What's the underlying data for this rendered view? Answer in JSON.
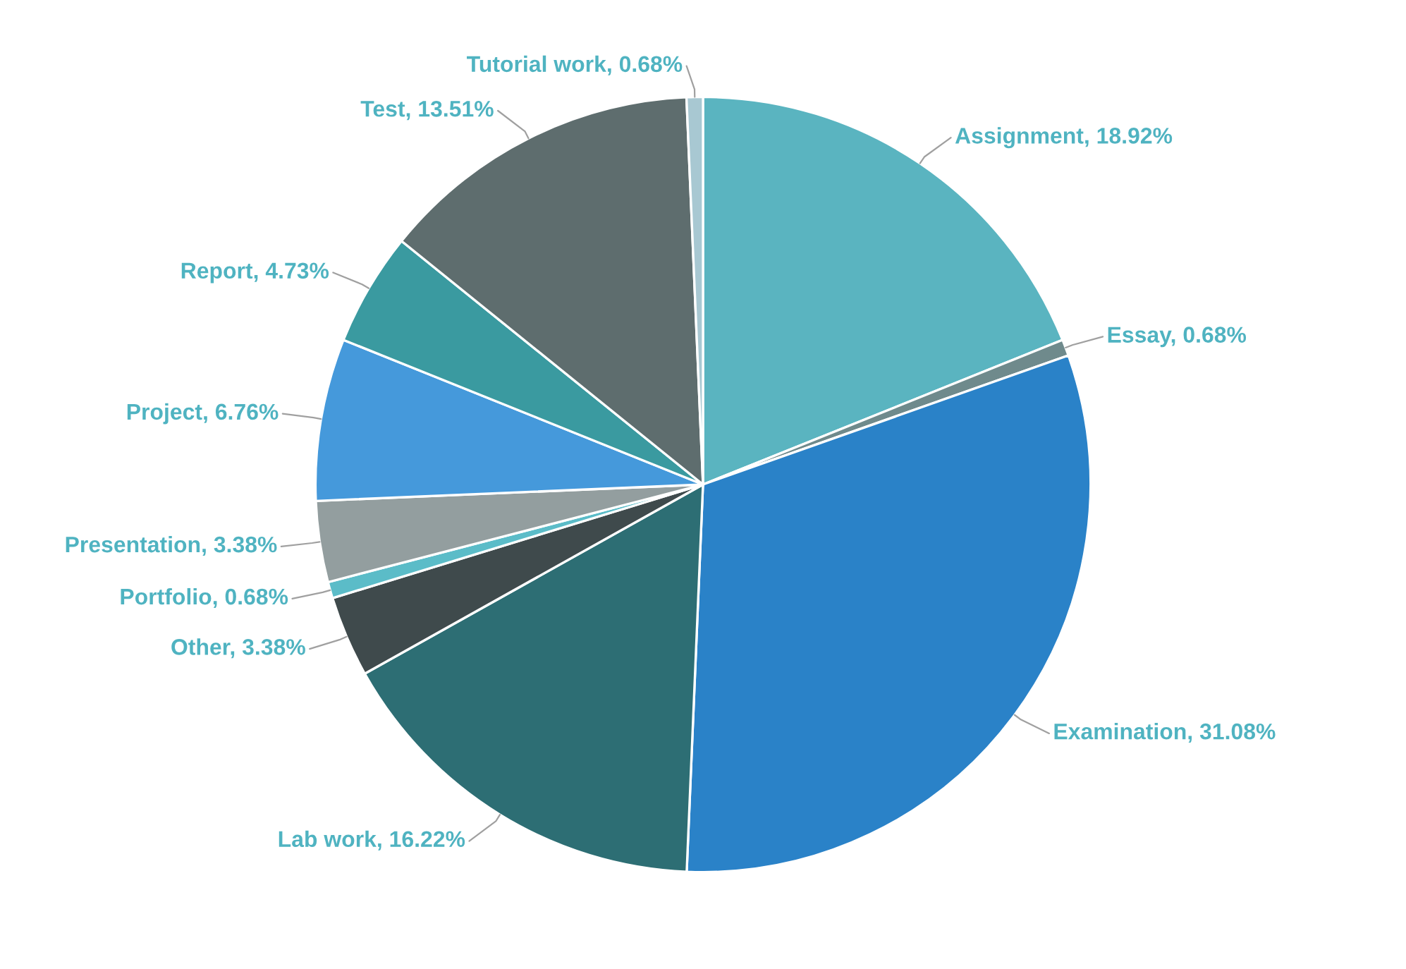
{
  "chart_data": {
    "type": "pie",
    "categories": [
      "Assignment",
      "Essay",
      "Examination",
      "Lab work",
      "Other",
      "Portfolio",
      "Presentation",
      "Project",
      "Report",
      "Test",
      "Tutorial work"
    ],
    "values": [
      18.92,
      0.68,
      31.08,
      16.22,
      3.38,
      0.68,
      3.38,
      6.76,
      4.73,
      13.51,
      0.68
    ],
    "value_labels": [
      "18.92%",
      "0.68%",
      "31.08%",
      "16.22%",
      "3.38%",
      "0.68%",
      "3.38%",
      "6.76%",
      "4.73%",
      "13.51%",
      "0.68%"
    ],
    "colors": [
      "#5ab4c0",
      "#6f8a8c",
      "#2a82c8",
      "#2d6e74",
      "#3f4a4c",
      "#5bbcc8",
      "#939e9f",
      "#4599db",
      "#3a9aa0",
      "#5e6d6e",
      "#a8c8d2"
    ],
    "legend": false
  }
}
